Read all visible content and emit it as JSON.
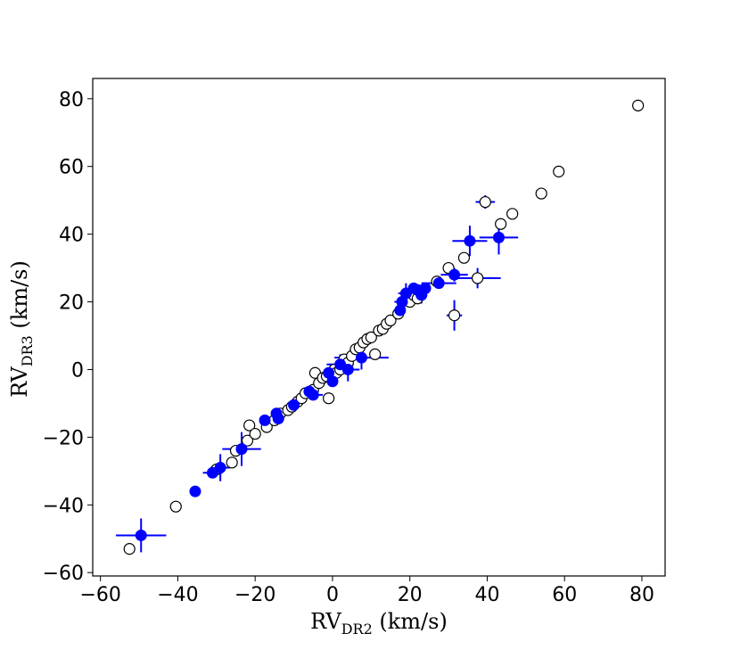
{
  "chart_data": {
    "type": "scatter",
    "title": "",
    "xlabel": {
      "main": "RV",
      "sub": "DR2",
      "unit": " (km/s)"
    },
    "ylabel": {
      "main": "RV",
      "sub": "DR3",
      "unit": " (km/s)"
    },
    "xlim": [
      -62,
      86
    ],
    "ylim": [
      -61,
      86
    ],
    "xticks": [
      -60,
      -40,
      -20,
      0,
      20,
      40,
      60,
      80
    ],
    "yticks": [
      -60,
      -40,
      -20,
      0,
      20,
      40,
      60,
      80
    ],
    "grid": false,
    "colors": {
      "filled": "#0000ff",
      "open_edge": "#000000",
      "open_fill": "#ffffff",
      "errorbar": "#0000ff"
    },
    "series": [
      {
        "marker": "open-circle",
        "points": [
          [
            -52.5,
            -53
          ],
          [
            -40.5,
            -40.5
          ],
          [
            -30,
            -29.5
          ],
          [
            -26,
            -27.5
          ],
          [
            -25,
            -24
          ],
          [
            -22,
            -21
          ],
          [
            -21.5,
            -16.5
          ],
          [
            -20,
            -19
          ],
          [
            -17,
            -17
          ],
          [
            -15,
            -15
          ],
          [
            -13.5,
            -13
          ],
          [
            -11.5,
            -12
          ],
          [
            -10.5,
            -11
          ],
          [
            -9,
            -9.5
          ],
          [
            -8,
            -8.5
          ],
          [
            -7,
            -7
          ],
          [
            -5,
            -6
          ],
          [
            -4.5,
            -1
          ],
          [
            -3.5,
            -4
          ],
          [
            -2.5,
            -2.5
          ],
          [
            -1.5,
            -2
          ],
          [
            -1,
            -8.5
          ],
          [
            0.5,
            0
          ],
          [
            1,
            -1
          ],
          [
            2,
            0
          ],
          [
            3,
            3
          ],
          [
            4,
            2
          ],
          [
            5,
            4
          ],
          [
            6,
            6
          ],
          [
            7,
            6.5
          ],
          [
            8,
            8
          ],
          [
            9,
            9
          ],
          [
            10,
            9.5
          ],
          [
            11,
            4.5
          ],
          [
            12,
            11.5
          ],
          [
            13,
            12
          ],
          [
            14,
            13.5
          ],
          [
            15,
            14.5
          ],
          [
            17,
            16.5
          ],
          [
            20,
            20
          ],
          [
            21,
            22
          ],
          [
            22,
            21
          ],
          [
            23,
            23
          ],
          [
            27,
            26
          ],
          [
            30,
            30
          ],
          [
            31.5,
            16
          ],
          [
            34,
            33
          ],
          [
            37.5,
            27
          ],
          [
            39.5,
            49.5
          ],
          [
            43.5,
            43
          ],
          [
            46.5,
            46
          ],
          [
            54,
            52
          ],
          [
            58.5,
            58.5
          ],
          [
            79,
            78
          ]
        ]
      },
      {
        "marker": "filled-circle",
        "points": [
          [
            -49.5,
            -49
          ],
          [
            -35.5,
            -36
          ],
          [
            -31,
            -30.5
          ],
          [
            -29,
            -29
          ],
          [
            -23.5,
            -23.5
          ],
          [
            -17.5,
            -15
          ],
          [
            -14.5,
            -13
          ],
          [
            -14,
            -14.5
          ],
          [
            -10,
            -10.5
          ],
          [
            -6,
            -6.5
          ],
          [
            -5,
            -7.5
          ],
          [
            -1,
            -1
          ],
          [
            0,
            -3.5
          ],
          [
            2,
            1.5
          ],
          [
            4,
            0
          ],
          [
            7.5,
            3.5
          ],
          [
            17.5,
            17.5
          ],
          [
            18,
            20
          ],
          [
            19,
            22.5
          ],
          [
            21,
            24
          ],
          [
            22,
            23.5
          ],
          [
            23,
            22
          ],
          [
            24,
            24
          ],
          [
            27.5,
            25.5
          ],
          [
            31.5,
            28
          ],
          [
            35.5,
            38
          ],
          [
            43,
            39
          ]
        ]
      }
    ],
    "error_bars": [
      {
        "x": -49.5,
        "y": -49,
        "xerr": 6.5,
        "yerr": 5
      },
      {
        "x": -31,
        "y": -30.5,
        "xerr": 2.5,
        "yerr": 1.5
      },
      {
        "x": -29,
        "y": -29,
        "xerr": 2.5,
        "yerr": 4
      },
      {
        "x": -23.5,
        "y": -23.5,
        "xerr": 5,
        "yerr": 5
      },
      {
        "x": -5,
        "y": -7.5,
        "xerr": 2.5,
        "yerr": 1.5
      },
      {
        "x": 0,
        "y": -3.5,
        "xerr": 1.5,
        "yerr": 1.5
      },
      {
        "x": 2,
        "y": 1.5,
        "xerr": 3.5,
        "yerr": 3
      },
      {
        "x": 4,
        "y": 0,
        "xerr": 3,
        "yerr": 3.5
      },
      {
        "x": 7.5,
        "y": 3.5,
        "xerr": 7,
        "yerr": 3.5
      },
      {
        "x": 18,
        "y": 20,
        "xerr": 2,
        "yerr": 3
      },
      {
        "x": 19,
        "y": 22.5,
        "xerr": 2,
        "yerr": 3
      },
      {
        "x": 23,
        "y": 22,
        "xerr": 1.5,
        "yerr": 2.5
      },
      {
        "x": 27.5,
        "y": 25.5,
        "xerr": 4.5,
        "yerr": 1.5
      },
      {
        "x": 31.5,
        "y": 28,
        "xerr": 3.5,
        "yerr": 2
      },
      {
        "x": 35.5,
        "y": 38,
        "xerr": 4.5,
        "yerr": 4.5
      },
      {
        "x": 43,
        "y": 39,
        "xerr": 5,
        "yerr": 5
      },
      {
        "x": 37.5,
        "y": 27,
        "xerr": 6,
        "yerr": 3
      },
      {
        "x": 31.5,
        "y": 16,
        "xerr": 2,
        "yerr": 4.5
      },
      {
        "x": 39.5,
        "y": 49.5,
        "xerr": 2.5,
        "yerr": 2
      }
    ]
  }
}
